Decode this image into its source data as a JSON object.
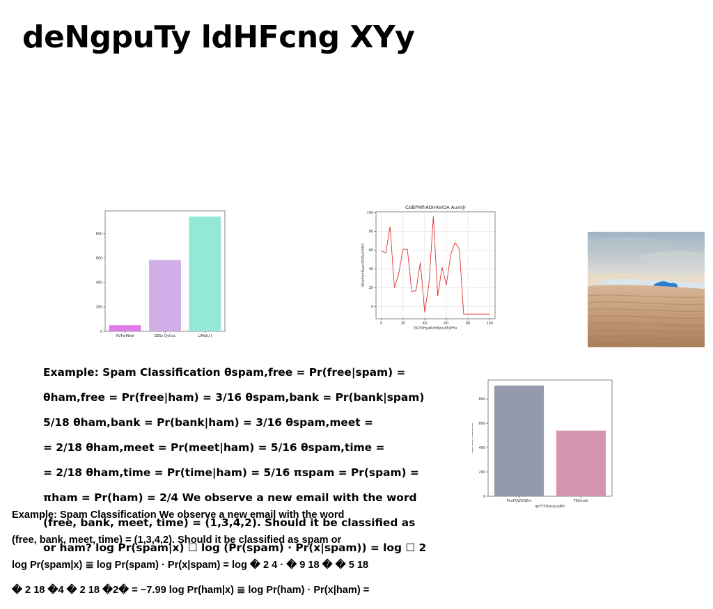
{
  "slide": {
    "title": "deNgpuTy ldHFcng XYy",
    "text_block_1_lines": [
      "Example: Spam Classification θspam,free = Pr(free|spam) =",
      "θham,free = Pr(free|ham) = 3/16 θspam,bank = Pr(bank|spam)",
      "5/18 θham,bank = Pr(bank|ham) = 3/16 θspam,meet =",
      "= 2/18 θham,meet = Pr(meet|ham) = 5/16 θspam,time =",
      "= 2/18 θham,time = Pr(time|ham) = 5/16 πspam = Pr(spam) =",
      "πham = Pr(ham) = 2/4 We observe a new email with the word",
      "(free, bank, meet, time) = (1,3,4,2). Should it be classified as",
      "or ham? log Pr(spam|x) ☐ log (Pr(spam) · Pr(x|spam)) = log ☐ 2"
    ],
    "text_block_2_lines": [
      "Example: Spam Classification We observe a new email with the word",
      "(free, bank, meet, time) = (1,3,4,2). Should it be classified as spam or",
      "log Pr(spam|x) ≣ log Pr(spam) · Pr(x|spam) = log � 2 4 · � 9 18 � � 5 18",
      "� 2 18 �4 � 2 18 �2� = −7.99 log Pr(ham|x) ≣ log Pr(ham) · Pr(x|ham) ="
    ],
    "photo_icon": "desert-dunes-photo"
  },
  "chart_data": [
    {
      "type": "bar",
      "categories": [
        "KVFwffbwl",
        "ZBSz QyUac",
        "LIMqlU J"
      ],
      "values": [
        50,
        585,
        940
      ],
      "colors": [
        "#df7de8",
        "#d0aee8",
        "#93e8d8"
      ],
      "title": "",
      "xlabel": "",
      "ylabel": "",
      "ylim": [
        0,
        987
      ],
      "yticks": [
        0,
        200,
        400,
        600,
        800
      ],
      "grid": false
    },
    {
      "type": "line",
      "title": "CslBPNfhAOHAVIOA AuxVJr",
      "xlabel": "fjCYXHyaKcbBJnyXEjVHu",
      "ylabel": "XExtFrcHSuxrOYlRxYVWY",
      "x": [
        0,
        4,
        8,
        12,
        16,
        20,
        24,
        28,
        32,
        36,
        40,
        44,
        48,
        52,
        56,
        60,
        64,
        68,
        72,
        76,
        80,
        84,
        88,
        92,
        96,
        100
      ],
      "series": [
        {
          "values": [
            59,
            57,
            85,
            20,
            35,
            61,
            61,
            16,
            17,
            47,
            -6,
            25,
            96,
            11,
            42,
            23,
            55,
            68,
            61,
            -8,
            -8,
            -8,
            -8,
            -8,
            -8,
            -8
          ],
          "color": "#e03030"
        }
      ],
      "xlim": [
        -5,
        105
      ],
      "ylim": [
        -13,
        101
      ],
      "xticks": [
        0,
        20,
        40,
        60,
        80,
        100
      ],
      "yticks": [
        0,
        20,
        40,
        60,
        80,
        100
      ],
      "grid": true
    },
    {
      "type": "bar",
      "categories": [
        "FhuFVWUGEm",
        "TKSmsjh"
      ],
      "values": [
        910,
        540
      ],
      "colors": [
        "#9499ae",
        "#d595ae"
      ],
      "title": "",
      "xlabel": "qkFYSToscpuqBfc",
      "ylabel": "RppYutJhvdaSDdc",
      "ylim": [
        0,
        956
      ],
      "yticks": [
        0,
        200,
        400,
        600,
        800
      ],
      "grid": false
    }
  ]
}
